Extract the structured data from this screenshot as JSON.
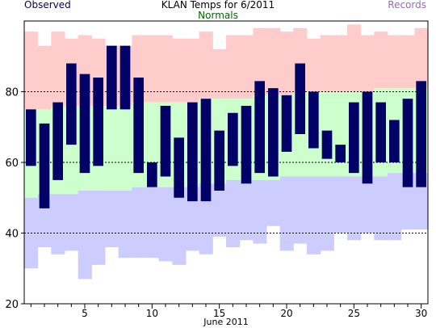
{
  "chart_data": {
    "type": "bar",
    "title": "KLAN Temps for 6/2011",
    "xlabel": "June 2011",
    "ylabel": "",
    "legend": {
      "observed": "Observed",
      "normals": "Normals",
      "records": "Records"
    },
    "colors": {
      "observed": "#000066",
      "normals": "#ccffcc",
      "records": "#ffcccc",
      "record_low": "#ccccff",
      "observed_label": "#000066",
      "normals_label": "#006600",
      "records_label": "#9966cc"
    },
    "xlim": [
      1,
      31
    ],
    "ylim": [
      20,
      100
    ],
    "x_ticks": [
      5,
      10,
      15,
      20,
      25,
      30
    ],
    "y_ticks": [
      20,
      40,
      60,
      80
    ],
    "gridlines_y": [
      40,
      60,
      80
    ],
    "days": [
      1,
      2,
      3,
      4,
      5,
      6,
      7,
      8,
      9,
      10,
      11,
      12,
      13,
      14,
      15,
      16,
      17,
      18,
      19,
      20,
      21,
      22,
      23,
      24,
      25,
      26,
      27,
      28,
      29,
      30
    ],
    "series": [
      {
        "name": "Observed",
        "high": [
          75,
          71,
          77,
          88,
          85,
          84,
          93,
          93,
          84,
          60,
          76,
          67,
          77,
          78,
          69,
          74,
          76,
          83,
          81,
          79,
          88,
          80,
          69,
          65,
          77,
          80,
          77,
          72,
          78,
          83
        ]
      },
      {
        "name": "Observed",
        "low": [
          59,
          47,
          55,
          65,
          57,
          59,
          75,
          75,
          57,
          53,
          56,
          50,
          49,
          49,
          52,
          59,
          54,
          57,
          56,
          63,
          68,
          64,
          61,
          60,
          57,
          54,
          60,
          60,
          53,
          53
        ]
      },
      {
        "name": "Normals",
        "high": [
          75,
          75,
          76,
          76,
          76,
          76,
          76,
          76,
          77,
          77,
          77,
          77,
          77,
          78,
          78,
          78,
          78,
          79,
          79,
          79,
          80,
          80,
          80,
          80,
          80,
          80,
          81,
          81,
          81,
          81
        ]
      },
      {
        "name": "Normals",
        "low": [
          50,
          51,
          51,
          51,
          52,
          52,
          52,
          52,
          53,
          53,
          53,
          53,
          53,
          54,
          54,
          55,
          55,
          55,
          55,
          56,
          56,
          56,
          56,
          56,
          56,
          56,
          56,
          57,
          57,
          57
        ]
      },
      {
        "name": "Records",
        "high": [
          97,
          93,
          97,
          95,
          96,
          95,
          93,
          93,
          96,
          96,
          96,
          95,
          95,
          97,
          92,
          96,
          96,
          98,
          98,
          97,
          98,
          95,
          96,
          96,
          99,
          96,
          97,
          96,
          96,
          98
        ]
      },
      {
        "name": "Records",
        "low": [
          30,
          36,
          34,
          35,
          27,
          31,
          36,
          33,
          33,
          33,
          32,
          31,
          35,
          34,
          39,
          36,
          38,
          37,
          42,
          35,
          37,
          34,
          35,
          40,
          38,
          40,
          38,
          38,
          41,
          41
        ]
      }
    ]
  }
}
